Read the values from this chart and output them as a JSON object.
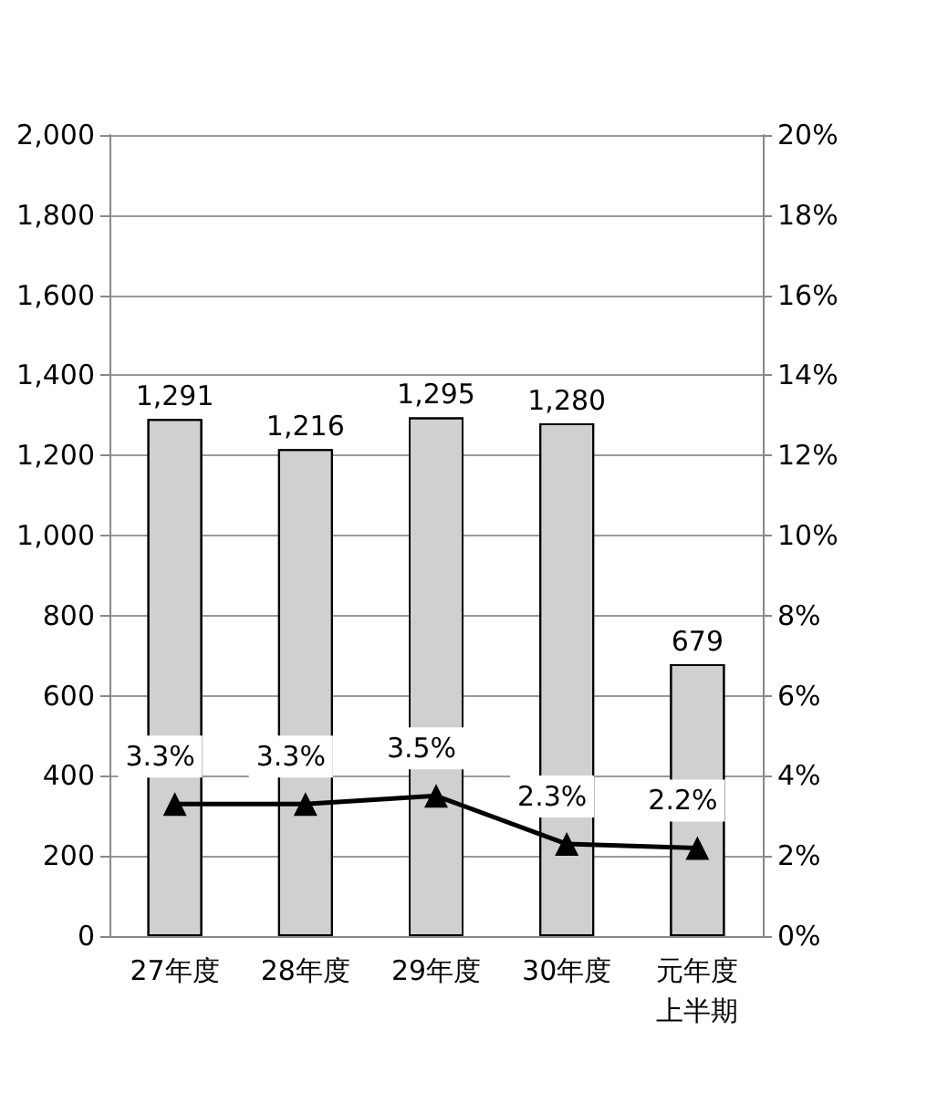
{
  "chart_data": {
    "type": "bar",
    "categories": [
      "27年度",
      "28年度",
      "29年度",
      "30年度",
      "元年度上半期"
    ],
    "series": [
      {
        "color": "#d0d0d0",
        "values": [
          1291,
          1216,
          1295,
          1280,
          679
        ],
        "value_labels": [
          "1,291",
          "1,216",
          "1,295",
          "1,280",
          "679"
        ]
      },
      {
        "type": "line",
        "axis": "y2",
        "color": "#000000",
        "marker": "triangle",
        "values": [
          3.3,
          3.3,
          3.5,
          2.3,
          2.2
        ],
        "value_labels": [
          "3.3%",
          "3.3%",
          "3.5%",
          "2.3%",
          "2.2%"
        ]
      }
    ],
    "ylim": [
      0,
      2000
    ],
    "yticks": [
      0,
      200,
      400,
      600,
      800,
      {
        "value": 1000,
        "label": "1,000"
      },
      {
        "value": 1200,
        "label": "1,200"
      },
      {
        "value": 1400,
        "label": "1,400"
      },
      {
        "value": 1600,
        "label": "1,600"
      },
      {
        "value": 1800,
        "label": "1,800"
      },
      {
        "value": 2000,
        "label": "2,000"
      }
    ],
    "y2lim": [
      0,
      20
    ],
    "y2ticks": [
      {
        "value": 0,
        "label": "0%"
      },
      {
        "value": 2,
        "label": "2%"
      },
      {
        "value": 4,
        "label": "4%"
      },
      {
        "value": 6,
        "label": "6%"
      },
      {
        "value": 8,
        "label": "8%"
      },
      {
        "value": 10,
        "label": "10%"
      },
      {
        "value": 12,
        "label": "12%"
      },
      {
        "value": 14,
        "label": "14%"
      },
      {
        "value": 16,
        "label": "16%"
      },
      {
        "value": 18,
        "label": "18%"
      },
      {
        "value": 20,
        "label": "20%"
      }
    ],
    "grid": "y"
  }
}
